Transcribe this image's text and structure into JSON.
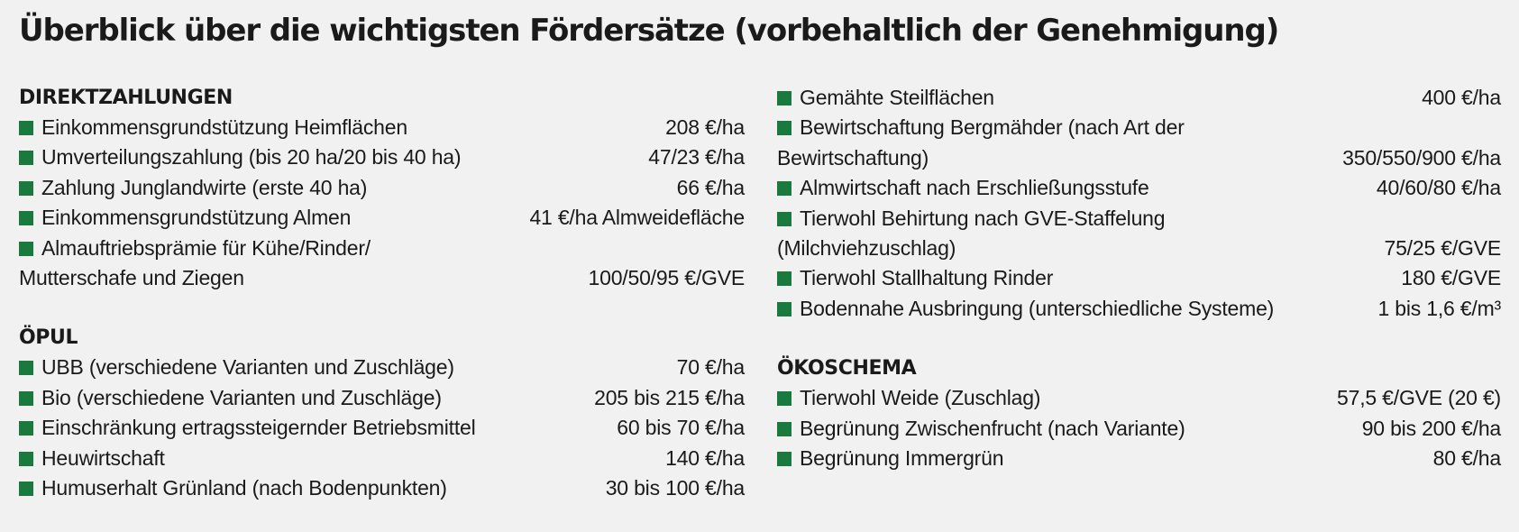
{
  "title": "Überblick über die wichtigsten Fördersätze (vorbehaltlich der Genehmigung)",
  "colors": {
    "bullet": "#1a7a3e",
    "background": "#f1f1f1",
    "text": "#1a1a1a"
  },
  "sections": {
    "direktzahlungen": {
      "heading": "DIREKTZAHLUNGEN",
      "items": [
        {
          "label": "Einkommensgrundstützung Heimflächen",
          "value": "208 €/ha"
        },
        {
          "label": "Umverteilungszahlung (bis 20 ha/20 bis 40 ha)",
          "value": "47/23 €/ha"
        },
        {
          "label": "Zahlung Junglandwirte (erste 40 ha)",
          "value": "66 €/ha"
        },
        {
          "label": "Einkommensgrundstützung Almen",
          "value": "41 €/ha Almweidefläche"
        },
        {
          "label": "Almauftriebsprämie für Kühe/Rinder/",
          "cont": "Mutterschafe und Ziegen",
          "value": "100/50/95 €/GVE"
        }
      ]
    },
    "oepul": {
      "heading": "ÖPUL",
      "items": [
        {
          "label": "UBB (verschiedene Varianten und Zuschläge)",
          "value": "70 €/ha"
        },
        {
          "label": "Bio (verschiedene Varianten und Zuschläge)",
          "value": "205 bis 215 €/ha"
        },
        {
          "label": "Einschränkung ertragssteigernder Betriebsmittel",
          "value": "60 bis 70 €/ha"
        },
        {
          "label": "Heuwirtschaft",
          "value": "140 €/ha"
        },
        {
          "label": "Humuserhalt Grünland (nach Bodenpunkten)",
          "value": "30 bis 100 €/ha"
        }
      ]
    },
    "oepul_cont": {
      "items": [
        {
          "label": "Gemähte Steilflächen",
          "value": "400 €/ha"
        },
        {
          "label": "Bewirtschaftung Bergmähder (nach Art der",
          "cont": "Bewirtschaftung)",
          "value": "350/550/900 €/ha"
        },
        {
          "label": "Almwirtschaft nach Erschließungsstufe",
          "value": "40/60/80 €/ha"
        },
        {
          "label": "Tierwohl Behirtung nach GVE-Staffelung",
          "cont": "(Milchviehzuschlag)",
          "value": "75/25 €/GVE"
        },
        {
          "label": "Tierwohl Stallhaltung Rinder",
          "value": "180 €/GVE"
        },
        {
          "label": "Bodennahe Ausbringung (unterschiedliche Systeme)",
          "value": "1 bis 1,6 €/m³"
        }
      ]
    },
    "oekoschema": {
      "heading": "ÖKOSCHEMA",
      "items": [
        {
          "label": "Tierwohl Weide (Zuschlag)",
          "value": "57,5 €/GVE (20 €)"
        },
        {
          "label": "Begrünung Zwischenfrucht (nach Variante)",
          "value": "90 bis 200 €/ha"
        },
        {
          "label": "Begrünung Immergrün",
          "value": "80 €/ha"
        }
      ]
    }
  }
}
